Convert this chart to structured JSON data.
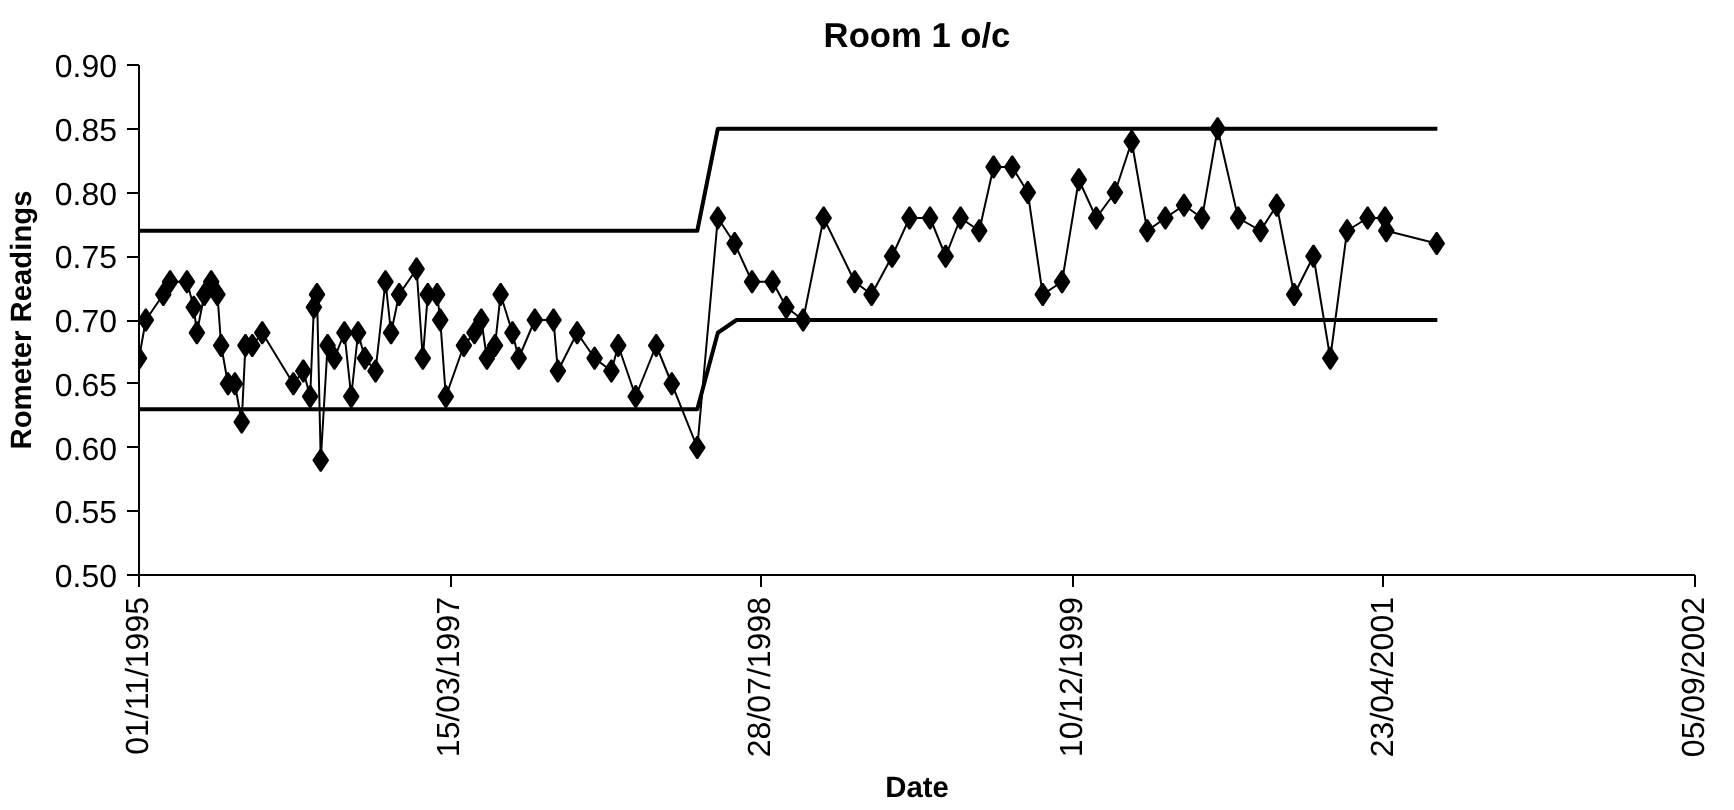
{
  "chart_data": {
    "type": "line",
    "title": "Room 1 o/c",
    "xlabel": "Date",
    "ylabel": "Rometer Readings",
    "grid": false,
    "xlim": [
      "1995-11-01",
      "2002-09-05"
    ],
    "xticks": [
      {
        "value": "1995-11-01",
        "label": "01/11/1995"
      },
      {
        "value": "1997-03-15",
        "label": "15/03/1997"
      },
      {
        "value": "1998-07-28",
        "label": "28/07/1998"
      },
      {
        "value": "1999-12-10",
        "label": "10/12/1999"
      },
      {
        "value": "2001-04-23",
        "label": "23/04/2001"
      },
      {
        "value": "2002-09-05",
        "label": "05/09/2002"
      }
    ],
    "ylim": [
      0.5,
      0.9
    ],
    "yticks": [
      {
        "value": 0.5,
        "label": "0.50"
      },
      {
        "value": 0.55,
        "label": "0.55"
      },
      {
        "value": 0.6,
        "label": "0.60"
      },
      {
        "value": 0.65,
        "label": "0.65"
      },
      {
        "value": 0.7,
        "label": "0.70"
      },
      {
        "value": 0.75,
        "label": "0.75"
      },
      {
        "value": 0.8,
        "label": "0.80"
      },
      {
        "value": 0.85,
        "label": "0.85"
      },
      {
        "value": 0.9,
        "label": "0.90"
      }
    ],
    "series": [
      {
        "color": "#000000",
        "marker": "diamond",
        "line_style": "solid",
        "x": [
          "1995-11-01",
          "1995-11-12",
          "1995-12-10",
          "1995-12-21",
          "1996-01-17",
          "1996-01-28",
          "1996-02-02",
          "1996-02-14",
          "1996-02-25",
          "1996-03-06",
          "1996-03-12",
          "1996-03-23",
          "1996-04-03",
          "1996-04-14",
          "1996-04-20",
          "1996-05-01",
          "1996-05-17",
          "1996-07-06",
          "1996-07-22",
          "1996-08-02",
          "1996-08-08",
          "1996-08-13",
          "1996-08-19",
          "1996-08-30",
          "1996-09-10",
          "1996-09-26",
          "1996-10-07",
          "1996-10-18",
          "1996-10-29",
          "1996-11-15",
          "1996-12-01",
          "1996-12-10",
          "1996-12-23",
          "1997-01-20",
          "1997-01-30",
          "1997-02-07",
          "1997-02-22",
          "1997-02-27",
          "1997-03-08",
          "1997-04-06",
          "1997-04-23",
          "1997-05-04",
          "1997-05-13",
          "1997-05-26",
          "1997-06-04",
          "1997-06-23",
          "1997-07-03",
          "1997-07-29",
          "1997-08-28",
          "1997-09-04",
          "1997-10-05",
          "1997-11-02",
          "1997-11-29",
          "1997-12-10",
          "1998-01-07",
          "1998-02-09",
          "1998-03-06",
          "1998-04-16",
          "1998-05-19",
          "1998-06-15",
          "1998-07-13",
          "1998-08-15",
          "1998-09-06",
          "1998-10-03",
          "1998-11-05",
          "1998-12-25",
          "1999-01-21",
          "1999-02-23",
          "1999-03-23",
          "1999-04-25",
          "1999-05-20",
          "1999-06-13",
          "1999-07-13",
          "1999-08-05",
          "1999-09-04",
          "1999-09-29",
          "1999-10-23",
          "1999-11-23",
          "1999-12-20",
          "2000-01-17",
          "2000-02-16",
          "2000-03-14",
          "2000-04-08",
          "2000-05-07",
          "2000-06-06",
          "2000-07-05",
          "2000-07-30",
          "2000-09-01",
          "2000-10-07",
          "2000-11-02",
          "2000-11-30",
          "2000-12-31",
          "2001-01-27",
          "2001-02-23",
          "2001-03-28",
          "2001-04-25",
          "2001-04-27",
          "2001-07-17"
        ],
        "values": [
          0.67,
          0.7,
          0.72,
          0.73,
          0.73,
          0.71,
          0.69,
          0.72,
          0.73,
          0.72,
          0.68,
          0.65,
          0.65,
          0.62,
          0.68,
          0.68,
          0.69,
          0.65,
          0.66,
          0.64,
          0.71,
          0.72,
          0.59,
          0.68,
          0.67,
          0.69,
          0.64,
          0.69,
          0.67,
          0.66,
          0.73,
          0.69,
          0.72,
          0.74,
          0.67,
          0.72,
          0.72,
          0.7,
          0.64,
          0.68,
          0.69,
          0.7,
          0.67,
          0.68,
          0.72,
          0.69,
          0.67,
          0.7,
          0.7,
          0.66,
          0.69,
          0.67,
          0.66,
          0.68,
          0.64,
          0.68,
          0.65,
          0.6,
          0.78,
          0.76,
          0.73,
          0.73,
          0.71,
          0.7,
          0.78,
          0.73,
          0.72,
          0.75,
          0.78,
          0.78,
          0.75,
          0.78,
          0.77,
          0.82,
          0.82,
          0.8,
          0.72,
          0.73,
          0.81,
          0.78,
          0.8,
          0.84,
          0.77,
          0.78,
          0.79,
          0.78,
          0.85,
          0.78,
          0.77,
          0.79,
          0.72,
          0.75,
          0.67,
          0.77,
          0.78,
          0.78,
          0.77,
          0.76
        ]
      },
      {
        "color": "#000000",
        "marker": "none",
        "line_style": "solid",
        "x": [
          "1995-11-01",
          "1998-04-16",
          "1998-05-19",
          "2001-07-18"
        ],
        "values": [
          0.77,
          0.77,
          0.85,
          0.85
        ]
      },
      {
        "color": "#000000",
        "marker": "none",
        "line_style": "solid",
        "x": [
          "1995-11-01",
          "1998-04-16",
          "1998-05-19",
          "1998-06-18",
          "2001-07-18"
        ],
        "values": [
          0.63,
          0.63,
          0.69,
          0.7,
          0.7
        ]
      }
    ]
  }
}
